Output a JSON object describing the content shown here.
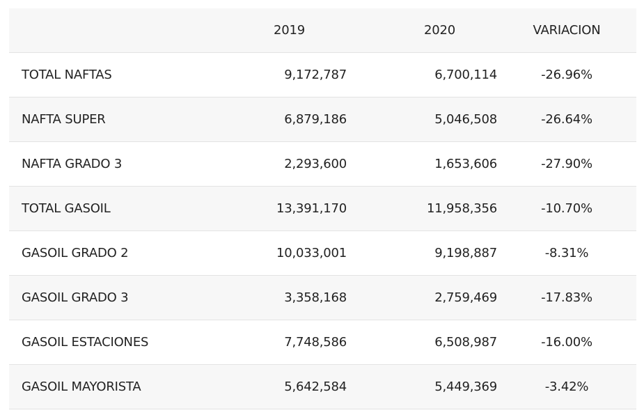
{
  "table": {
    "headers": [
      "",
      "2019",
      "2020",
      "VARIACION"
    ],
    "rows": [
      [
        "TOTAL NAFTAS",
        "9,172,787",
        "6,700,114",
        "-26.96%"
      ],
      [
        "NAFTA SUPER",
        "6,879,186",
        "5,046,508",
        "-26.64%"
      ],
      [
        "NAFTA GRADO 3",
        "2,293,600",
        "1,653,606",
        "-27.90%"
      ],
      [
        "TOTAL GASOIL",
        "13,391,170",
        "11,958,356",
        "-10.70%"
      ],
      [
        "GASOIL GRADO 2",
        "10,033,001",
        "9,198,887",
        "-8.31%"
      ],
      [
        "GASOIL GRADO 3",
        "3,358,168",
        "2,759,469",
        "-17.83%"
      ],
      [
        "GASOIL ESTACIONES",
        "7,748,586",
        "6,508,987",
        "-16.00%"
      ],
      [
        "GASOIL MAYORISTA",
        "5,642,584",
        "5,449,369",
        "-3.42%"
      ]
    ]
  }
}
